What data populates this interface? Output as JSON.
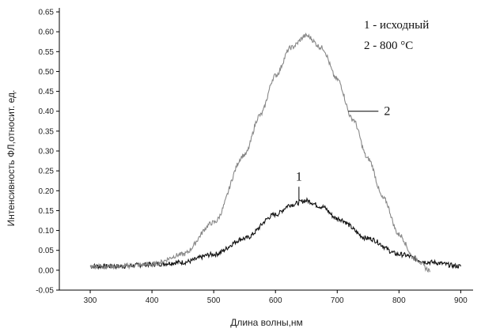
{
  "chart_data": {
    "type": "line",
    "title": "",
    "xlabel": "Длина волны,нм",
    "ylabel": "Интенсивность ФЛ,относит. ед.",
    "xlim": [
      250,
      920
    ],
    "ylim": [
      -0.05,
      0.66
    ],
    "xticks": [
      300,
      400,
      500,
      600,
      700,
      800,
      900
    ],
    "yticks": [
      -0.05,
      0.0,
      0.05,
      0.1,
      0.15,
      0.2,
      0.25,
      0.3,
      0.35,
      0.4,
      0.45,
      0.5,
      0.55,
      0.6,
      0.65
    ],
    "grid": false,
    "legend_position": "top-right",
    "legend": [
      "1 - исходный",
      "2 - 800 °C"
    ],
    "series": [
      {
        "name": "1",
        "color": "#111111",
        "x": [
          300,
          350,
          400,
          450,
          500,
          550,
          600,
          625,
          650,
          675,
          700,
          750,
          800,
          850,
          900
        ],
        "y": [
          0.01,
          0.01,
          0.015,
          0.02,
          0.04,
          0.08,
          0.14,
          0.165,
          0.175,
          0.16,
          0.13,
          0.08,
          0.04,
          0.02,
          0.01
        ]
      },
      {
        "name": "2",
        "color": "#888888",
        "x": [
          300,
          350,
          400,
          450,
          500,
          550,
          575,
          600,
          625,
          650,
          675,
          700,
          725,
          750,
          775,
          800,
          825,
          850
        ],
        "y": [
          0.01,
          0.01,
          0.015,
          0.04,
          0.12,
          0.29,
          0.39,
          0.49,
          0.56,
          0.59,
          0.56,
          0.48,
          0.38,
          0.28,
          0.18,
          0.09,
          0.03,
          0.0
        ]
      }
    ],
    "annotations": [
      {
        "text": "1",
        "x": 638,
        "y": 0.19
      },
      {
        "text": "2",
        "x": 718,
        "y": 0.4
      }
    ]
  }
}
